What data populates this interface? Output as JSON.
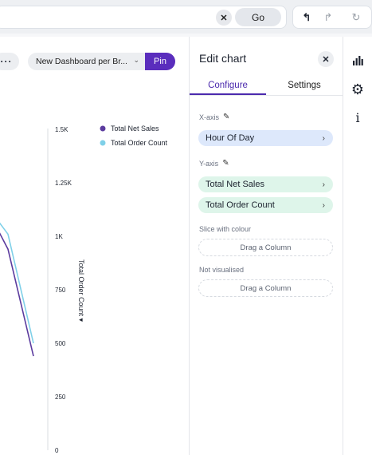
{
  "topbar": {
    "clear_icon": "close-icon",
    "clear_glyph": "✕",
    "go_label": "Go",
    "undo_glyph": "↰",
    "redo_glyph": "↱",
    "reset_glyph": "↻"
  },
  "canvas": {
    "more_glyph": "···",
    "dashboard_select": "New Dashboard per Br...",
    "chevron_glyph": "⌄",
    "pin_label": "Pin"
  },
  "panel": {
    "title": "Edit chart",
    "close_glyph": "✕",
    "tabs": [
      {
        "label": "Configure",
        "active": true
      },
      {
        "label": "Settings",
        "active": false
      }
    ],
    "x_axis": {
      "label": "X-axis",
      "items": [
        "Hour Of Day"
      ]
    },
    "y_axis": {
      "label": "Y-axis",
      "items": [
        "Total Net Sales",
        "Total Order Count"
      ]
    },
    "slice": {
      "label": "Slice with colour",
      "drop": "Drag a Column"
    },
    "not_visualised": {
      "label": "Not visualised",
      "drop": "Drag a Column"
    },
    "edit_glyph": "✎",
    "arrow_glyph": "›"
  },
  "rail": {
    "icons": [
      "bar-chart-icon",
      "gear-icon",
      "info-icon"
    ],
    "info_glyph": "i",
    "gear_glyph": "⚙"
  },
  "colors": {
    "accent": "#5a2dbd",
    "series_net_sales": "#5b3b9e",
    "series_order_count": "#7fd0e8"
  },
  "chart_data": {
    "type": "line",
    "ylabel": "Total Order Count",
    "ylabel_suffix": "▾",
    "yticks": [
      "0",
      "250",
      "500",
      "750",
      "1K",
      "1.25K",
      "1.5K"
    ],
    "ylim": [
      0,
      1500
    ],
    "legend_position": "top-right",
    "series": [
      {
        "name": "Total Net Sales",
        "color": "#5b3b9e",
        "values": [
          1040,
          940,
          440
        ]
      },
      {
        "name": "Total Order Count",
        "color": "#7fd0e8",
        "values": [
          1080,
          1010,
          500
        ]
      }
    ]
  }
}
